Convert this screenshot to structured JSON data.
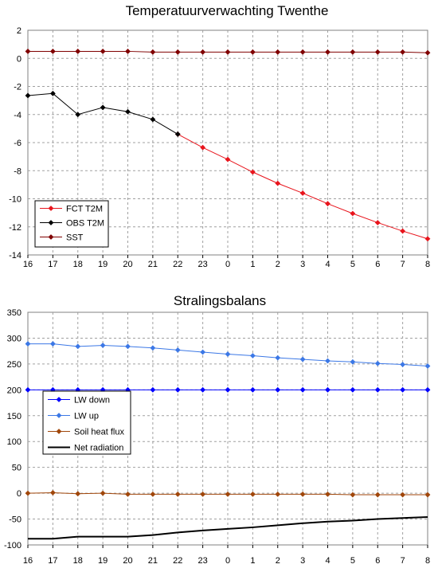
{
  "chart_data": [
    {
      "type": "line",
      "title": "Temperatuurverwachting Twenthe",
      "xlabel": "",
      "ylabel": "",
      "categories": [
        "16",
        "17",
        "18",
        "19",
        "20",
        "21",
        "22",
        "23",
        "0",
        "1",
        "2",
        "3",
        "4",
        "5",
        "6",
        "7",
        "8"
      ],
      "ylim": [
        -14,
        2
      ],
      "yticks": [
        2,
        0,
        -2,
        -4,
        -6,
        -8,
        -10,
        -12,
        -14
      ],
      "grid": true,
      "legend_position": "bottom-left",
      "series": [
        {
          "name": "FCT T2M",
          "color": "#e8141c",
          "marker": "diamond",
          "line_width": 1,
          "values": [
            null,
            null,
            null,
            null,
            null,
            null,
            -5.4,
            -6.35,
            -7.2,
            -8.1,
            -8.9,
            -9.6,
            -10.35,
            -11.05,
            -11.7,
            -12.3,
            -12.85
          ]
        },
        {
          "name": "OBS T2M",
          "color": "#000000",
          "marker": "diamond",
          "line_width": 1,
          "values": [
            -2.65,
            -2.5,
            -4.0,
            -3.5,
            -3.8,
            -4.35,
            -5.4,
            null,
            null,
            null,
            null,
            null,
            null,
            null,
            null,
            null,
            null
          ]
        },
        {
          "name": "SST",
          "color": "#800000",
          "marker": "diamond",
          "line_width": 1,
          "values": [
            0.5,
            0.5,
            0.5,
            0.5,
            0.5,
            0.45,
            0.45,
            0.45,
            0.45,
            0.45,
            0.45,
            0.45,
            0.45,
            0.45,
            0.45,
            0.45,
            0.4
          ]
        }
      ]
    },
    {
      "type": "line",
      "title": "Stralingsbalans",
      "xlabel": "",
      "ylabel": "",
      "categories": [
        "16",
        "17",
        "18",
        "19",
        "20",
        "21",
        "22",
        "23",
        "0",
        "1",
        "2",
        "3",
        "4",
        "5",
        "6",
        "7",
        "8"
      ],
      "ylim": [
        -100,
        350
      ],
      "yticks": [
        350,
        300,
        250,
        200,
        150,
        100,
        50,
        0,
        -50,
        -100
      ],
      "grid": true,
      "legend_position": "middle-left",
      "series": [
        {
          "name": "LW down",
          "color": "#0000ff",
          "marker": "diamond",
          "line_width": 1,
          "values": [
            200,
            200,
            200,
            200,
            200,
            200,
            200,
            200,
            200,
            200,
            200,
            200,
            200,
            200,
            200,
            200,
            200
          ]
        },
        {
          "name": "LW up",
          "color": "#3c78e6",
          "marker": "diamond",
          "line_width": 1,
          "values": [
            289,
            289,
            284,
            286,
            284,
            281,
            277,
            273,
            269,
            266,
            262,
            259,
            256,
            254,
            251,
            249,
            246
          ]
        },
        {
          "name": "Soil heat flux",
          "color": "#a0460a",
          "marker": "diamond",
          "line_width": 1,
          "values": [
            0,
            1,
            -1,
            0,
            -2,
            -2,
            -2,
            -2,
            -2,
            -2,
            -2,
            -2,
            -2,
            -3,
            -3,
            -3,
            -3
          ]
        },
        {
          "name": "Net radiation",
          "color": "#000000",
          "marker": "none",
          "line_width": 2,
          "values": [
            -88,
            -88,
            -84,
            -84,
            -84,
            -81,
            -76,
            -72,
            -69,
            -66,
            -62,
            -58,
            -55,
            -53,
            -50,
            -48,
            -46
          ]
        }
      ]
    }
  ]
}
